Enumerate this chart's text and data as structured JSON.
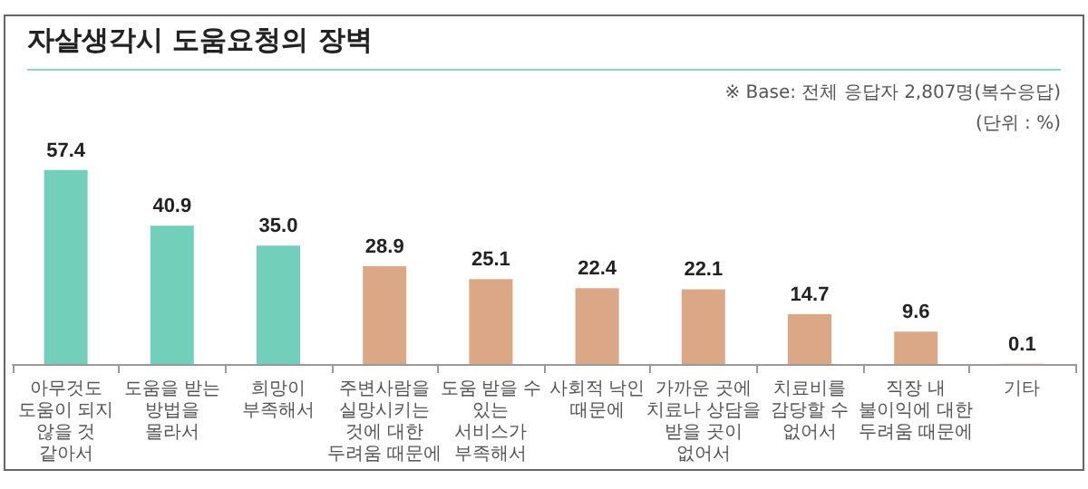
{
  "chart_data": {
    "type": "bar",
    "title": "자살생각시 도움요청의 장벽",
    "annotations": [
      "※ Base: 전체 응답자 2,807명(복수응답)",
      "(단위 : %)"
    ],
    "categories": [
      "아무것도\n도움이 되지\n않을 것\n같아서",
      "도움을 받는\n방법을\n몰라서",
      "희망이\n부족해서",
      "주변사람을\n실망시키는\n것에 대한\n두려움 때문에",
      "도움 받을 수\n있는\n서비스가\n부족해서",
      "사회적 낙인\n때문에",
      "가까운 곳에\n치료나 상담을\n받을 곳이\n없어서",
      "치료비를\n감당할 수\n없어서",
      "직장 내\n불이익에 대한\n두려움 때문에",
      "기타"
    ],
    "values": [
      57.4,
      40.9,
      35.0,
      28.9,
      25.1,
      22.4,
      22.1,
      14.7,
      9.6,
      0.1
    ],
    "colors": [
      "#72cfb9",
      "#72cfb9",
      "#72cfb9",
      "#dba887",
      "#dba887",
      "#dba887",
      "#dba887",
      "#dba887",
      "#dba887",
      "#dba887"
    ],
    "value_labels": [
      "57.4",
      "40.9",
      "35.0",
      "28.9",
      "25.1",
      "22.4",
      "22.1",
      "14.7",
      "9.6",
      "0.1"
    ]
  }
}
